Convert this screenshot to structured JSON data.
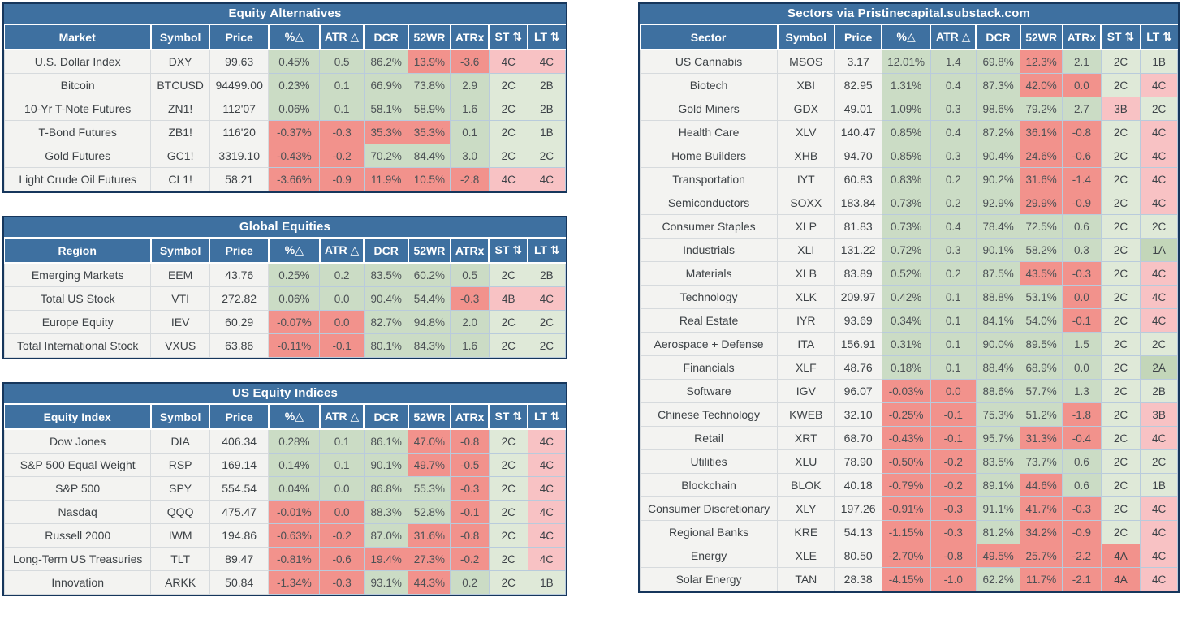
{
  "colors": {
    "blue": "#3e70a0",
    "navy": "#16365c",
    "green": "#cbdcc5",
    "red": "#f2928c",
    "lgreen": "#dfe9d8",
    "lred": "#f8c2c4",
    "sgreen": "#c3d6b9",
    "labelbg": "#f3f3f1",
    "grid": "#b9cbdc",
    "gridgray": "#d6dadd",
    "text": "#4c5155",
    "labeltext": "#3d4246"
  },
  "chart_data": [
    {
      "type": "table",
      "title": "Equity Alternatives",
      "columns": [
        "Market",
        "Symbol",
        "Price",
        "%△",
        "ATR △",
        "DCR",
        "52WR",
        "ATRx",
        "ST ⇅",
        "LT ⇅"
      ],
      "rows": [
        {
          "cells": [
            "U.S. Dollar Index",
            "DXY",
            "99.63",
            "0.45%",
            "0.5",
            "86.2%",
            "13.9%",
            "-3.6",
            "4C",
            "4C"
          ],
          "c": [
            "g",
            "g",
            "g",
            "r",
            "r",
            "lr",
            "lr"
          ]
        },
        {
          "cells": [
            "Bitcoin",
            "BTCUSD",
            "94499.00",
            "0.23%",
            "0.1",
            "66.9%",
            "73.8%",
            "2.9",
            "2C",
            "2B"
          ],
          "c": [
            "g",
            "g",
            "g",
            "g",
            "g",
            "lg",
            "lg"
          ]
        },
        {
          "cells": [
            "10-Yr T-Note Futures",
            "ZN1!",
            "112'07",
            "0.06%",
            "0.1",
            "58.1%",
            "58.9%",
            "1.6",
            "2C",
            "2B"
          ],
          "c": [
            "g",
            "g",
            "g",
            "g",
            "g",
            "lg",
            "lg"
          ]
        },
        {
          "cells": [
            "T-Bond Futures",
            "ZB1!",
            "116'20",
            "-0.37%",
            "-0.3",
            "35.3%",
            "35.3%",
            "0.1",
            "2C",
            "1B"
          ],
          "c": [
            "r",
            "r",
            "r",
            "r",
            "g",
            "lg",
            "lg"
          ]
        },
        {
          "cells": [
            "Gold Futures",
            "GC1!",
            "3319.10",
            "-0.43%",
            "-0.2",
            "70.2%",
            "84.4%",
            "3.0",
            "2C",
            "2C"
          ],
          "c": [
            "r",
            "r",
            "g",
            "g",
            "g",
            "lg",
            "lg"
          ]
        },
        {
          "cells": [
            "Light Crude Oil Futures",
            "CL1!",
            "58.21",
            "-3.66%",
            "-0.9",
            "11.9%",
            "10.5%",
            "-2.8",
            "4C",
            "4C"
          ],
          "c": [
            "r",
            "r",
            "r",
            "r",
            "r",
            "lr",
            "lr"
          ]
        }
      ]
    },
    {
      "type": "table",
      "title": "Global Equities",
      "columns": [
        "Region",
        "Symbol",
        "Price",
        "%△",
        "ATR △",
        "DCR",
        "52WR",
        "ATRx",
        "ST ⇅",
        "LT ⇅"
      ],
      "rows": [
        {
          "cells": [
            "Emerging Markets",
            "EEM",
            "43.76",
            "0.25%",
            "0.2",
            "83.5%",
            "60.2%",
            "0.5",
            "2C",
            "2B"
          ],
          "c": [
            "g",
            "g",
            "g",
            "g",
            "g",
            "lg",
            "lg"
          ]
        },
        {
          "cells": [
            "Total US Stock",
            "VTI",
            "272.82",
            "0.06%",
            "0.0",
            "90.4%",
            "54.4%",
            "-0.3",
            "4B",
            "4C"
          ],
          "c": [
            "g",
            "g",
            "g",
            "g",
            "r",
            "lr",
            "lr"
          ]
        },
        {
          "cells": [
            "Europe Equity",
            "IEV",
            "60.29",
            "-0.07%",
            "0.0",
            "82.7%",
            "94.8%",
            "2.0",
            "2C",
            "2C"
          ],
          "c": [
            "r",
            "r",
            "g",
            "g",
            "g",
            "lg",
            "lg"
          ]
        },
        {
          "cells": [
            "Total International Stock",
            "VXUS",
            "63.86",
            "-0.11%",
            "-0.1",
            "80.1%",
            "84.3%",
            "1.6",
            "2C",
            "2C"
          ],
          "c": [
            "r",
            "r",
            "g",
            "g",
            "g",
            "lg",
            "lg"
          ]
        }
      ]
    },
    {
      "type": "table",
      "title": "US Equity Indices",
      "columns": [
        "Equity Index",
        "Symbol",
        "Price",
        "%△",
        "ATR △",
        "DCR",
        "52WR",
        "ATRx",
        "ST ⇅",
        "LT ⇅"
      ],
      "rows": [
        {
          "cells": [
            "Dow Jones",
            "DIA",
            "406.34",
            "0.28%",
            "0.1",
            "86.1%",
            "47.0%",
            "-0.8",
            "2C",
            "4C"
          ],
          "c": [
            "g",
            "g",
            "g",
            "r",
            "r",
            "lg",
            "lr"
          ]
        },
        {
          "cells": [
            "S&P 500 Equal Weight",
            "RSP",
            "169.14",
            "0.14%",
            "0.1",
            "90.1%",
            "49.7%",
            "-0.5",
            "2C",
            "4C"
          ],
          "c": [
            "g",
            "g",
            "g",
            "r",
            "r",
            "lg",
            "lr"
          ]
        },
        {
          "cells": [
            "S&P 500",
            "SPY",
            "554.54",
            "0.04%",
            "0.0",
            "86.8%",
            "55.3%",
            "-0.3",
            "2C",
            "4C"
          ],
          "c": [
            "g",
            "g",
            "g",
            "g",
            "r",
            "lg",
            "lr"
          ]
        },
        {
          "cells": [
            "Nasdaq",
            "QQQ",
            "475.47",
            "-0.01%",
            "0.0",
            "88.3%",
            "52.8%",
            "-0.1",
            "2C",
            "4C"
          ],
          "c": [
            "r",
            "r",
            "g",
            "g",
            "r",
            "lg",
            "lr"
          ]
        },
        {
          "cells": [
            "Russell 2000",
            "IWM",
            "194.86",
            "-0.63%",
            "-0.2",
            "87.0%",
            "31.6%",
            "-0.8",
            "2C",
            "4C"
          ],
          "c": [
            "r",
            "r",
            "g",
            "r",
            "r",
            "lg",
            "lr"
          ]
        },
        {
          "cells": [
            "Long-Term US Treasuries",
            "TLT",
            "89.47",
            "-0.81%",
            "-0.6",
            "19.4%",
            "27.3%",
            "-0.2",
            "2C",
            "4C"
          ],
          "c": [
            "r",
            "r",
            "r",
            "r",
            "r",
            "lg",
            "lr"
          ]
        },
        {
          "cells": [
            "Innovation",
            "ARKK",
            "50.84",
            "-1.34%",
            "-0.3",
            "93.1%",
            "44.3%",
            "0.2",
            "2C",
            "1B"
          ],
          "c": [
            "r",
            "r",
            "g",
            "r",
            "g",
            "lg",
            "lg"
          ]
        }
      ]
    },
    {
      "type": "table",
      "title": "Sectors via Pristinecapital.substack.com",
      "columns": [
        "Sector",
        "Symbol",
        "Price",
        "%△",
        "ATR △",
        "DCR",
        "52WR",
        "ATRx",
        "ST ⇅",
        "LT ⇅"
      ],
      "rows": [
        {
          "cells": [
            "US Cannabis",
            "MSOS",
            "3.17",
            "12.01%",
            "1.4",
            "69.8%",
            "12.3%",
            "2.1",
            "2C",
            "1B"
          ],
          "c": [
            "g",
            "g",
            "g",
            "r",
            "g",
            "lg",
            "lg"
          ]
        },
        {
          "cells": [
            "Biotech",
            "XBI",
            "82.95",
            "1.31%",
            "0.4",
            "87.3%",
            "42.0%",
            "0.0",
            "2C",
            "4C"
          ],
          "c": [
            "g",
            "g",
            "g",
            "r",
            "r",
            "lg",
            "lr"
          ]
        },
        {
          "cells": [
            "Gold Miners",
            "GDX",
            "49.01",
            "1.09%",
            "0.3",
            "98.6%",
            "79.2%",
            "2.7",
            "3B",
            "2C"
          ],
          "c": [
            "g",
            "g",
            "g",
            "g",
            "g",
            "lr",
            "lg"
          ]
        },
        {
          "cells": [
            "Health Care",
            "XLV",
            "140.47",
            "0.85%",
            "0.4",
            "87.2%",
            "36.1%",
            "-0.8",
            "2C",
            "4C"
          ],
          "c": [
            "g",
            "g",
            "g",
            "r",
            "r",
            "lg",
            "lr"
          ]
        },
        {
          "cells": [
            "Home Builders",
            "XHB",
            "94.70",
            "0.85%",
            "0.3",
            "90.4%",
            "24.6%",
            "-0.6",
            "2C",
            "4C"
          ],
          "c": [
            "g",
            "g",
            "g",
            "r",
            "r",
            "lg",
            "lr"
          ]
        },
        {
          "cells": [
            "Transportation",
            "IYT",
            "60.83",
            "0.83%",
            "0.2",
            "90.2%",
            "31.6%",
            "-1.4",
            "2C",
            "4C"
          ],
          "c": [
            "g",
            "g",
            "g",
            "r",
            "r",
            "lg",
            "lr"
          ]
        },
        {
          "cells": [
            "Semiconductors",
            "SOXX",
            "183.84",
            "0.73%",
            "0.2",
            "92.9%",
            "29.9%",
            "-0.9",
            "2C",
            "4C"
          ],
          "c": [
            "g",
            "g",
            "g",
            "r",
            "r",
            "lg",
            "lr"
          ]
        },
        {
          "cells": [
            "Consumer Staples",
            "XLP",
            "81.83",
            "0.73%",
            "0.4",
            "78.4%",
            "72.5%",
            "0.6",
            "2C",
            "2C"
          ],
          "c": [
            "g",
            "g",
            "g",
            "g",
            "g",
            "lg",
            "lg"
          ]
        },
        {
          "cells": [
            "Industrials",
            "XLI",
            "131.22",
            "0.72%",
            "0.3",
            "90.1%",
            "58.2%",
            "0.3",
            "2C",
            "1A"
          ],
          "c": [
            "g",
            "g",
            "g",
            "g",
            "g",
            "lg",
            "sg"
          ]
        },
        {
          "cells": [
            "Materials",
            "XLB",
            "83.89",
            "0.52%",
            "0.2",
            "87.5%",
            "43.5%",
            "-0.3",
            "2C",
            "4C"
          ],
          "c": [
            "g",
            "g",
            "g",
            "r",
            "r",
            "lg",
            "lr"
          ]
        },
        {
          "cells": [
            "Technology",
            "XLK",
            "209.97",
            "0.42%",
            "0.1",
            "88.8%",
            "53.1%",
            "0.0",
            "2C",
            "4C"
          ],
          "c": [
            "g",
            "g",
            "g",
            "g",
            "r",
            "lg",
            "lr"
          ]
        },
        {
          "cells": [
            "Real Estate",
            "IYR",
            "93.69",
            "0.34%",
            "0.1",
            "84.1%",
            "54.0%",
            "-0.1",
            "2C",
            "4C"
          ],
          "c": [
            "g",
            "g",
            "g",
            "g",
            "r",
            "lg",
            "lr"
          ]
        },
        {
          "cells": [
            "Aerospace + Defense",
            "ITA",
            "156.91",
            "0.31%",
            "0.1",
            "90.0%",
            "89.5%",
            "1.5",
            "2C",
            "2C"
          ],
          "c": [
            "g",
            "g",
            "g",
            "g",
            "g",
            "lg",
            "lg"
          ]
        },
        {
          "cells": [
            "Financials",
            "XLF",
            "48.76",
            "0.18%",
            "0.1",
            "88.4%",
            "68.9%",
            "0.0",
            "2C",
            "2A"
          ],
          "c": [
            "g",
            "g",
            "g",
            "g",
            "g",
            "lg",
            "sg"
          ]
        },
        {
          "cells": [
            "Software",
            "IGV",
            "96.07",
            "-0.03%",
            "0.0",
            "88.6%",
            "57.7%",
            "1.3",
            "2C",
            "2B"
          ],
          "c": [
            "r",
            "r",
            "g",
            "g",
            "g",
            "lg",
            "lg"
          ]
        },
        {
          "cells": [
            "Chinese Technology",
            "KWEB",
            "32.10",
            "-0.25%",
            "-0.1",
            "75.3%",
            "51.2%",
            "-1.8",
            "2C",
            "3B"
          ],
          "c": [
            "r",
            "r",
            "g",
            "g",
            "r",
            "lg",
            "lr"
          ]
        },
        {
          "cells": [
            "Retail",
            "XRT",
            "68.70",
            "-0.43%",
            "-0.1",
            "95.7%",
            "31.3%",
            "-0.4",
            "2C",
            "4C"
          ],
          "c": [
            "r",
            "r",
            "g",
            "r",
            "r",
            "lg",
            "lr"
          ]
        },
        {
          "cells": [
            "Utilities",
            "XLU",
            "78.90",
            "-0.50%",
            "-0.2",
            "83.5%",
            "73.7%",
            "0.6",
            "2C",
            "2C"
          ],
          "c": [
            "r",
            "r",
            "g",
            "g",
            "g",
            "lg",
            "lg"
          ]
        },
        {
          "cells": [
            "Blockchain",
            "BLOK",
            "40.18",
            "-0.79%",
            "-0.2",
            "89.1%",
            "44.6%",
            "0.6",
            "2C",
            "1B"
          ],
          "c": [
            "r",
            "r",
            "g",
            "r",
            "g",
            "lg",
            "lg"
          ]
        },
        {
          "cells": [
            "Consumer Discretionary",
            "XLY",
            "197.26",
            "-0.91%",
            "-0.3",
            "91.1%",
            "41.7%",
            "-0.3",
            "2C",
            "4C"
          ],
          "c": [
            "r",
            "r",
            "g",
            "r",
            "r",
            "lg",
            "lr"
          ]
        },
        {
          "cells": [
            "Regional Banks",
            "KRE",
            "54.13",
            "-1.15%",
            "-0.3",
            "81.2%",
            "34.2%",
            "-0.9",
            "2C",
            "4C"
          ],
          "c": [
            "r",
            "r",
            "g",
            "r",
            "r",
            "lg",
            "lr"
          ]
        },
        {
          "cells": [
            "Energy",
            "XLE",
            "80.50",
            "-2.70%",
            "-0.8",
            "49.5%",
            "25.7%",
            "-2.2",
            "4A",
            "4C"
          ],
          "c": [
            "r",
            "r",
            "r",
            "r",
            "r",
            "r",
            "lr"
          ]
        },
        {
          "cells": [
            "Solar Energy",
            "TAN",
            "28.38",
            "-4.15%",
            "-1.0",
            "62.2%",
            "11.7%",
            "-2.1",
            "4A",
            "4C"
          ],
          "c": [
            "r",
            "r",
            "g",
            "r",
            "r",
            "r",
            "lr"
          ]
        }
      ]
    }
  ]
}
